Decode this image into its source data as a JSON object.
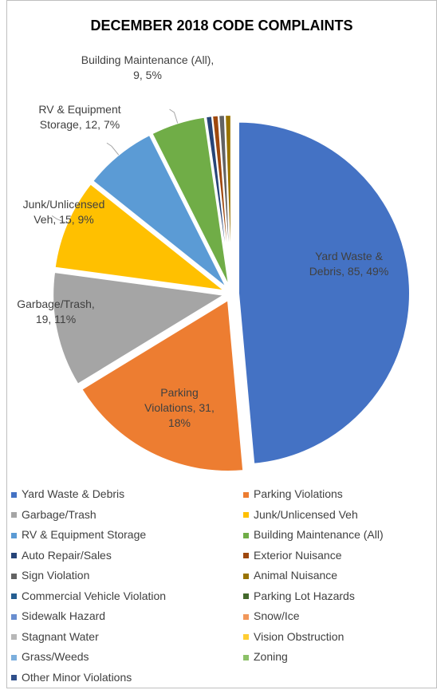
{
  "chart_data": {
    "type": "pie",
    "title": "DECEMBER 2018 CODE COMPLAINTS",
    "categories": [
      "Yard Waste & Debris",
      "Parking Violations",
      "Garbage/Trash",
      "Junk/Unlicensed Veh",
      "RV & Equipment Storage",
      "Building Maintenance (All)",
      "Auto Repair/Sales",
      "Exterior Nuisance",
      "Sign Violation",
      "Animal Nuisance",
      "Commercial Vehicle Violation",
      "Parking Lot Hazards",
      "Sidewalk Hazard",
      "Snow/Ice",
      "Stagnant Water",
      "Vision Obstruction",
      "Grass/Weeds",
      "Zoning",
      "Other Minor Violations"
    ],
    "values": [
      85,
      31,
      19,
      15,
      12,
      9,
      1,
      1,
      1,
      1,
      0,
      0,
      0,
      0,
      0,
      0,
      0,
      0,
      0
    ],
    "value_labels": [
      "Yard Waste & Debris, 85, 49%",
      "Parking Violations, 31, 18%",
      "Garbage/Trash, 19, 11%",
      "Junk/Unlicensed Veh, 15, 9%",
      "RV & Equipment Storage, 12, 7%",
      "Building Maintenance (All), 9, 5%",
      null,
      null,
      null,
      null,
      null,
      null,
      null,
      null,
      null,
      null,
      null,
      null,
      null
    ],
    "colors": [
      "#4472C4",
      "#ED7D31",
      "#A5A5A5",
      "#FFC000",
      "#5B9BD5",
      "#70AD47",
      "#264478",
      "#9E480E",
      "#636363",
      "#997300",
      "#255E91",
      "#43682B",
      "#698ED0",
      "#F1975A",
      "#B7B7B7",
      "#FFCD33",
      "#7CAFDD",
      "#8CC168",
      "#2F4F8A"
    ],
    "legend": "bottom"
  }
}
